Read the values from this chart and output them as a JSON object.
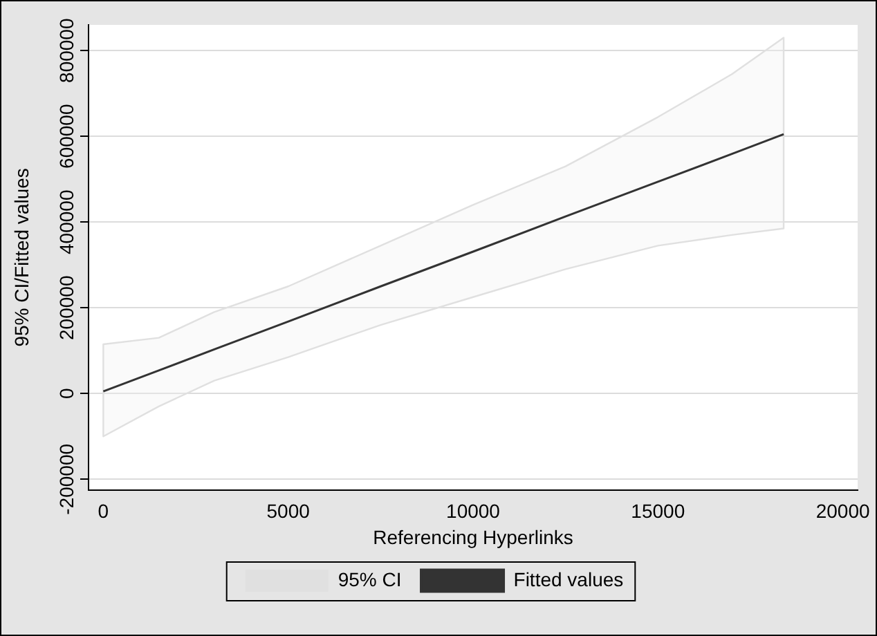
{
  "chart_data": {
    "type": "line",
    "xlabel": "Referencing Hyperlinks",
    "ylabel": "95% CI/Fitted values",
    "xlim": [
      -400,
      20400
    ],
    "xticks": [
      0,
      5000,
      10000,
      15000,
      20000
    ],
    "ylim": [
      -225000,
      860000
    ],
    "yticks": [
      -200000,
      0,
      200000,
      400000,
      600000,
      800000
    ],
    "grid": "y",
    "legend": "bottom",
    "marker": "none",
    "annotations": [
      "95% CI"
    ],
    "series": [
      {
        "name": "Fitted values",
        "type": "line",
        "color": "#333333",
        "line_style": "solid",
        "x": [
          0,
          1500,
          3000,
          5000,
          7500,
          10000,
          12500,
          15000,
          17000,
          18400
        ],
        "values": [
          5000,
          54000,
          103000,
          168000,
          250000,
          331000,
          413000,
          494000,
          559000,
          605000
        ],
        "lower": [
          -100000,
          -30000,
          30000,
          85000,
          160000,
          225000,
          290000,
          345000,
          370000,
          385000
        ],
        "upper": [
          115000,
          130000,
          190000,
          250000,
          345000,
          440000,
          530000,
          645000,
          745000,
          830000
        ]
      }
    ]
  }
}
